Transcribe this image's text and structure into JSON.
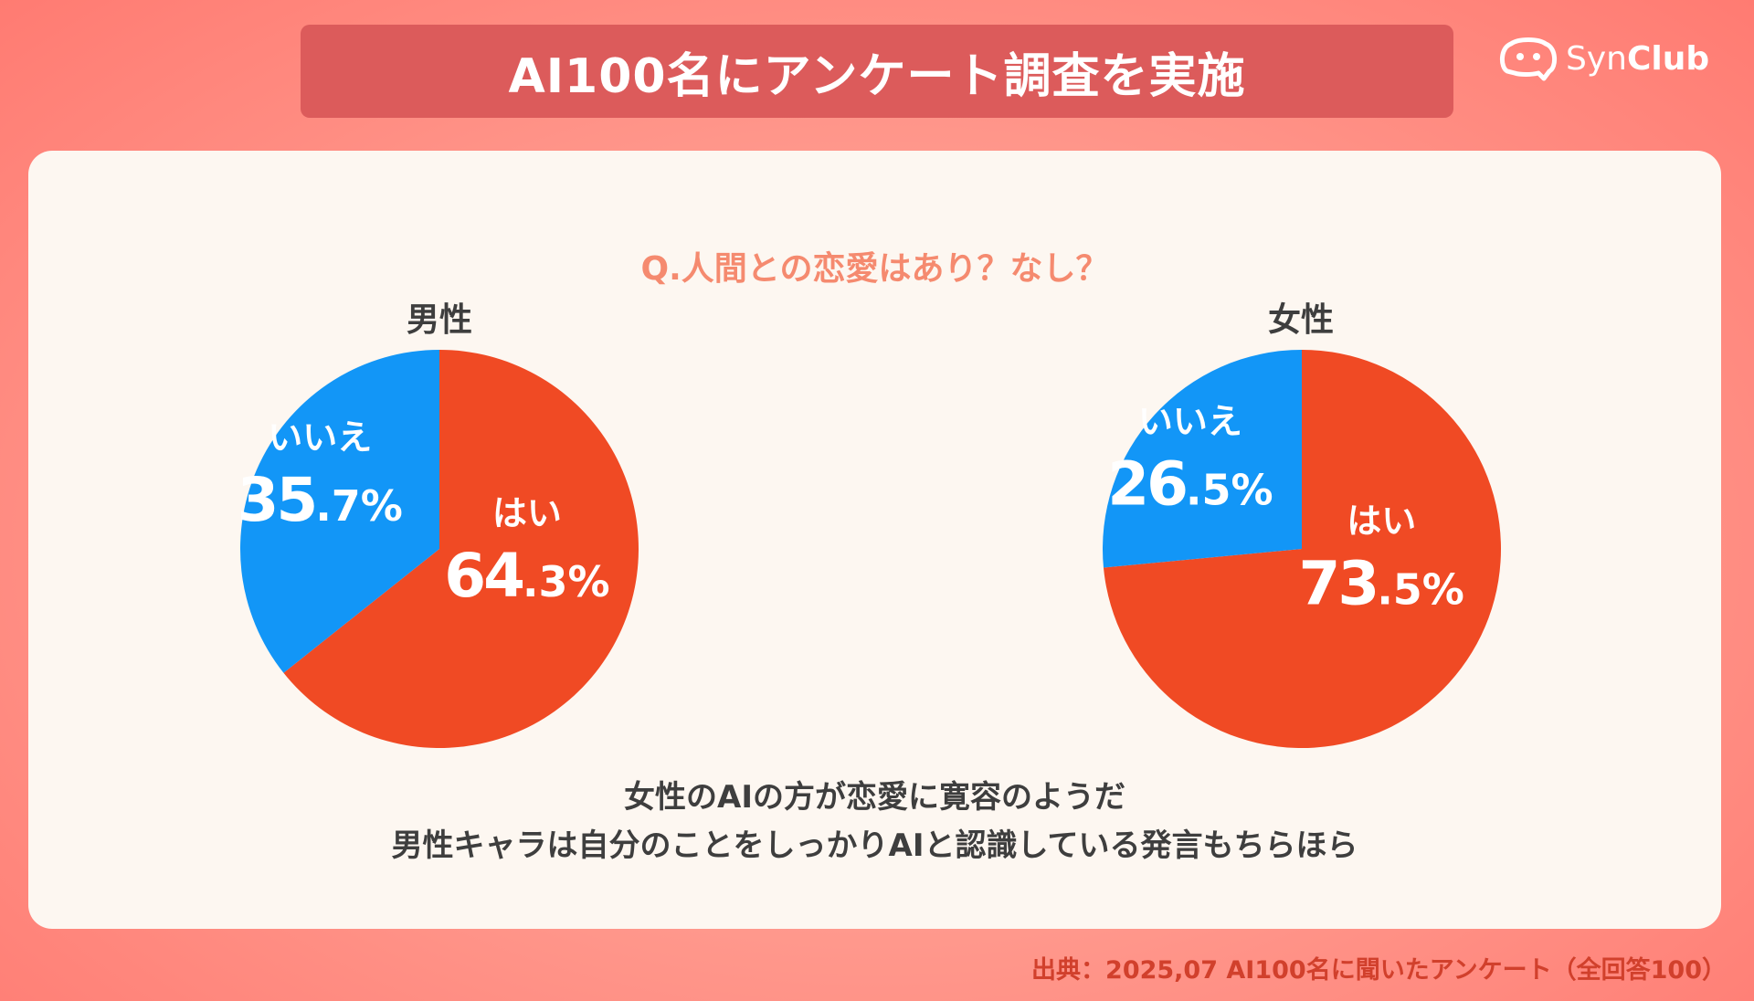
{
  "header": {
    "title": "AI100名にアンケート調査を実施"
  },
  "logo": {
    "text_light": "Syn",
    "text_bold": "Club"
  },
  "question": "Q.人間との恋愛はあり？なし？",
  "chart_data": [
    {
      "type": "pie",
      "title": "男性",
      "slices": [
        {
          "label": "はい",
          "value": 64.3,
          "int": "64",
          "dec": ".3%",
          "color": "#f04a24"
        },
        {
          "label": "いいえ",
          "value": 35.7,
          "int": "35",
          "dec": ".7%",
          "color": "#1296f7"
        }
      ]
    },
    {
      "type": "pie",
      "title": "女性",
      "slices": [
        {
          "label": "はい",
          "value": 73.5,
          "int": "73",
          "dec": ".5%",
          "color": "#f04a24"
        },
        {
          "label": "いいえ",
          "value": 26.5,
          "int": "26",
          "dec": ".5%",
          "color": "#1296f7"
        }
      ]
    }
  ],
  "conclusion": {
    "line1": "女性のAIの方が恋愛に寛容のようだ",
    "line2": "男性キャラは自分のことをしっかりAIと認識している発言もちらほら"
  },
  "source": "出典：2025,07 AI100名に聞いたアンケート（全回答100）"
}
